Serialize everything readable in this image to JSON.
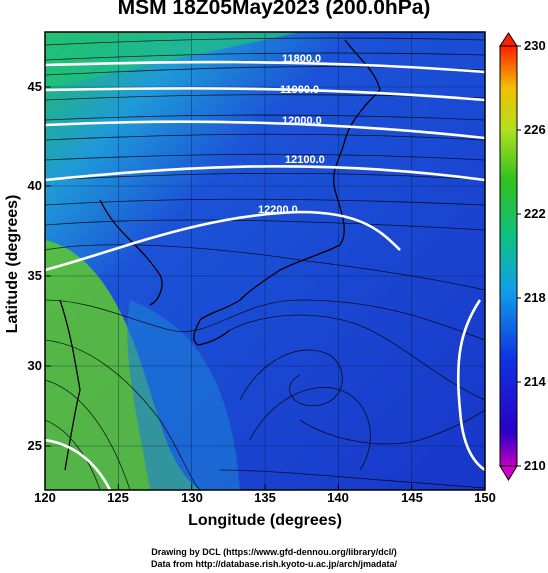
{
  "title": "MSM 18Z05May2023 (200.0hPa)",
  "x_axis": {
    "label": "Longitude (degrees)",
    "ticks": [
      "120",
      "125",
      "130",
      "135",
      "140",
      "145",
      "150"
    ]
  },
  "y_axis": {
    "label": "Latitude  (degrees)",
    "ticks": [
      "45",
      "40",
      "35",
      "30",
      "25"
    ]
  },
  "colorbar": {
    "ticks": [
      "230",
      "226",
      "222",
      "218",
      "214",
      "210"
    ]
  },
  "contours": [
    "11800.0",
    "11900.0",
    "12000.0",
    "12100.0",
    "12200.0"
  ],
  "credits": {
    "line1": "Drawing by DCL (https://www.gfd-dennou.org/library/dcl/)",
    "line2": "Data from http://database.rish.kyoto-u.ac.jp/arch/jmadata/"
  },
  "colors": {
    "cold": "#1a3fd6",
    "mid": "#19b4e6",
    "warm": "#6fd21e",
    "contour": "#ffffff"
  }
}
